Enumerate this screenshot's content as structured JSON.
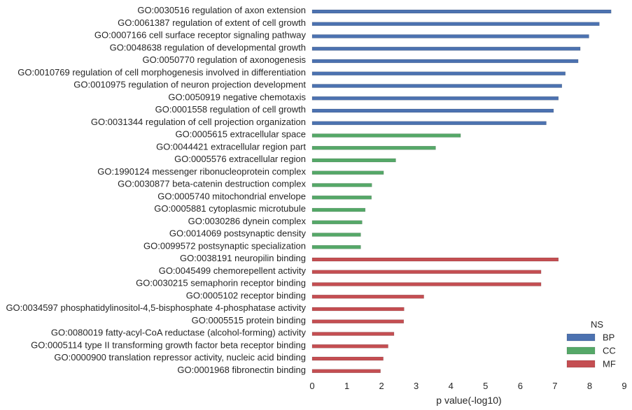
{
  "chart_data": {
    "type": "bar",
    "orientation": "horizontal",
    "xlabel": "p value(-log10)",
    "ylabel": "",
    "xlim": [
      0,
      9
    ],
    "xticks": [
      "0",
      "1",
      "2",
      "3",
      "4",
      "5",
      "6",
      "7",
      "8",
      "9"
    ],
    "grid": false,
    "legend": {
      "title": "NS",
      "placement": "lower-right",
      "entries": [
        {
          "name": "BP",
          "color": "#4C72B0"
        },
        {
          "name": "CC",
          "color": "#55A868"
        },
        {
          "name": "MF",
          "color": "#C44E52"
        }
      ]
    },
    "categories": [
      "GO:0030516 regulation of axon extension",
      "GO:0061387 regulation of extent of cell growth",
      "GO:0007166 cell surface receptor signaling pathway",
      "GO:0048638 regulation of developmental growth",
      "GO:0050770 regulation of axonogenesis",
      "GO:0010769 regulation of cell morphogenesis involved in differentiation",
      "GO:0010975 regulation of neuron projection development",
      "GO:0050919 negative chemotaxis",
      "GO:0001558 regulation of cell growth",
      "GO:0031344 regulation of cell projection organization",
      "GO:0005615 extracellular space",
      "GO:0044421 extracellular region part",
      "GO:0005576 extracellular region",
      "GO:1990124 messenger ribonucleoprotein complex",
      "GO:0030877 beta-catenin destruction complex",
      "GO:0005740 mitochondrial envelope",
      "GO:0005881 cytoplasmic microtubule",
      "GO:0030286 dynein complex",
      "GO:0014069 postsynaptic density",
      "GO:0099572 postsynaptic specialization",
      "GO:0038191 neuropilin binding",
      "GO:0045499 chemorepellent activity",
      "GO:0030215 semaphorin receptor binding",
      "GO:0005102 receptor binding",
      "GO:0034597 phosphatidylinositol-4,5-bisphosphate 4-phosphatase activity",
      "GO:0005515 protein binding",
      "GO:0080019 fatty-acyl-CoA reductase (alcohol-forming) activity",
      "GO:0005114 type II transforming growth factor beta receptor binding",
      "GO:0000900 translation repressor activity, nucleic acid binding",
      "GO:0001968 fibronectin binding"
    ],
    "series": [
      {
        "name": "BP",
        "values": [
          8.62,
          8.28,
          7.98,
          7.73,
          7.67,
          7.3,
          7.2,
          7.1,
          6.96,
          6.75,
          null,
          null,
          null,
          null,
          null,
          null,
          null,
          null,
          null,
          null,
          null,
          null,
          null,
          null,
          null,
          null,
          null,
          null,
          null,
          null
        ]
      },
      {
        "name": "CC",
        "values": [
          null,
          null,
          null,
          null,
          null,
          null,
          null,
          null,
          null,
          null,
          4.28,
          3.56,
          2.41,
          2.06,
          1.72,
          1.71,
          1.53,
          1.44,
          1.4,
          1.4,
          null,
          null,
          null,
          null,
          null,
          null,
          null,
          null,
          null,
          null
        ]
      },
      {
        "name": "MF",
        "values": [
          null,
          null,
          null,
          null,
          null,
          null,
          null,
          null,
          null,
          null,
          null,
          null,
          null,
          null,
          null,
          null,
          null,
          null,
          null,
          null,
          7.1,
          6.6,
          6.6,
          3.22,
          2.65,
          2.64,
          2.36,
          2.19,
          2.05,
          1.97
        ]
      }
    ]
  }
}
